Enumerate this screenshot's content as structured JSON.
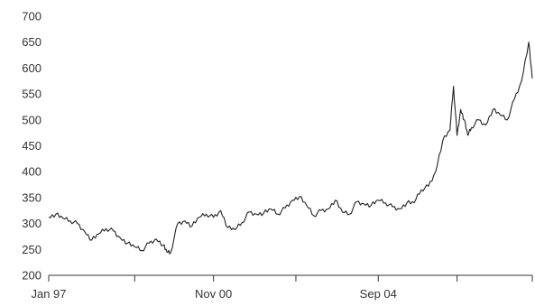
{
  "colors": {
    "background": "#ffffff",
    "line": "#222222",
    "axis": "#333333"
  },
  "chart_data": {
    "type": "line",
    "title": "",
    "xlabel": "",
    "ylabel": "",
    "ylim": [
      200,
      700
    ],
    "yticks": [
      200,
      250,
      300,
      350,
      400,
      450,
      500,
      550,
      600,
      650,
      700
    ],
    "xlim": [
      "1997-01",
      "2008-04"
    ],
    "xtick_labels": [
      {
        "date": "1997-01",
        "label": "Jan 97"
      },
      {
        "date": "2000-11",
        "label": "Nov 00"
      },
      {
        "date": "2004-09",
        "label": "Sep 04"
      }
    ],
    "xtick_marks": [
      "1997-01",
      "1999-01",
      "2000-11",
      "2002-10",
      "2004-09",
      "2006-07",
      "2008-04"
    ],
    "grid": false,
    "legend": "none",
    "series": [
      {
        "x": [
          "1997-01",
          "1997-03",
          "1997-05",
          "1997-07",
          "1997-09",
          "1997-11",
          "1998-01",
          "1998-03",
          "1998-05",
          "1998-07",
          "1998-09",
          "1998-11",
          "1999-01",
          "1999-03",
          "1999-05",
          "1999-07",
          "1999-09",
          "1999-10",
          "1999-11",
          "2000-01",
          "2000-03",
          "2000-05",
          "2000-07",
          "2000-09",
          "2000-11",
          "2001-01",
          "2001-03",
          "2001-05",
          "2001-07",
          "2001-09",
          "2001-11",
          "2002-01",
          "2002-03",
          "2002-05",
          "2002-07",
          "2002-09",
          "2002-11",
          "2003-01",
          "2003-03",
          "2003-05",
          "2003-07",
          "2003-09",
          "2003-11",
          "2004-01",
          "2004-03",
          "2004-05",
          "2004-07",
          "2004-09",
          "2004-11",
          "2005-01",
          "2005-03",
          "2005-05",
          "2005-07",
          "2005-09",
          "2005-11",
          "2006-01",
          "2006-03",
          "2006-05",
          "2006-06",
          "2006-07",
          "2006-08",
          "2006-09",
          "2006-10",
          "2006-11",
          "2007-01",
          "2007-03",
          "2007-05",
          "2007-07",
          "2007-09",
          "2007-11",
          "2008-01",
          "2008-03",
          "2008-04"
        ],
        "y": [
          312,
          318,
          310,
          305,
          300,
          285,
          268,
          280,
          290,
          286,
          272,
          262,
          255,
          248,
          262,
          270,
          258,
          245,
          243,
          300,
          305,
          295,
          312,
          318,
          312,
          325,
          292,
          288,
          302,
          322,
          318,
          320,
          328,
          318,
          330,
          345,
          352,
          335,
          315,
          325,
          328,
          345,
          322,
          318,
          342,
          338,
          335,
          345,
          340,
          332,
          328,
          340,
          340,
          365,
          372,
          400,
          460,
          480,
          565,
          470,
          520,
          500,
          470,
          485,
          500,
          490,
          520,
          510,
          500,
          540,
          575,
          650,
          580
        ]
      }
    ]
  }
}
